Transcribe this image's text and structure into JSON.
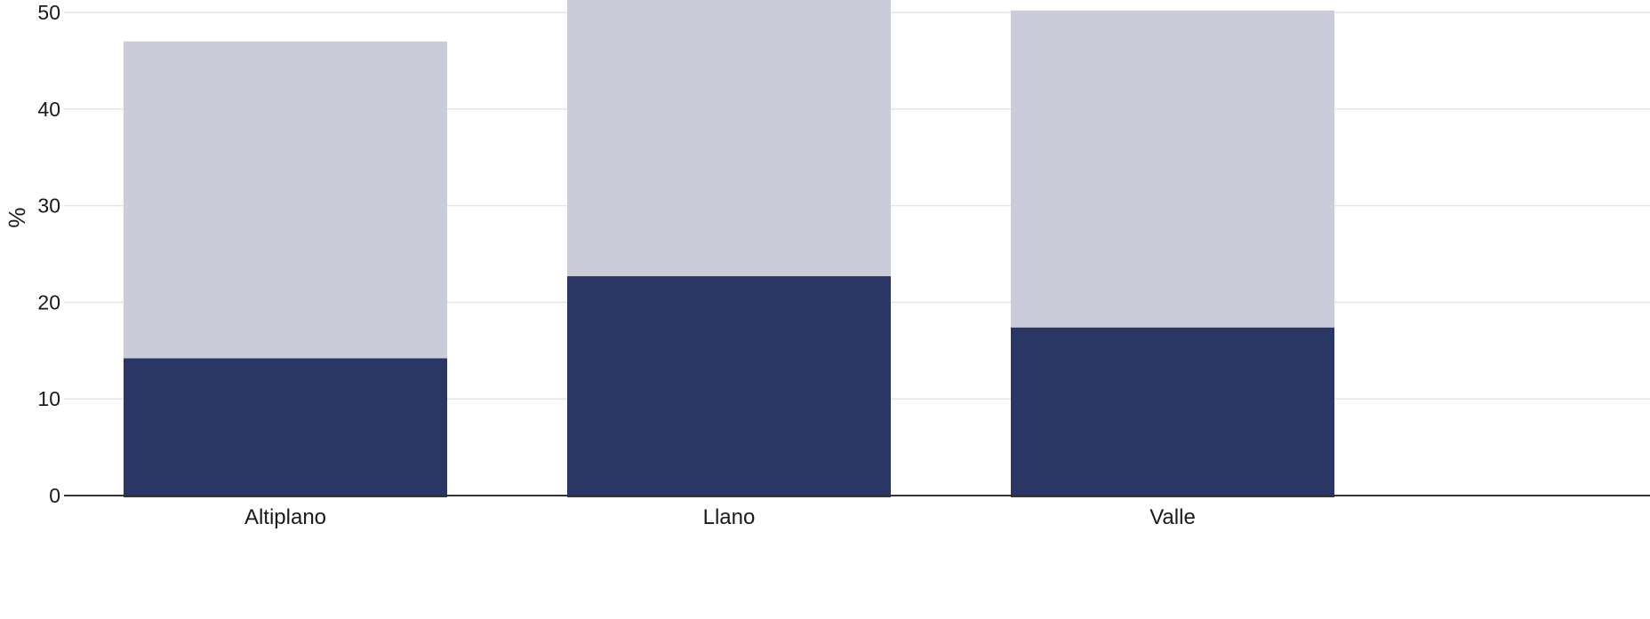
{
  "chart_data": {
    "type": "bar",
    "stacked": true,
    "categories": [
      "Altiplano",
      "Llano",
      "Valle"
    ],
    "series": [
      {
        "values": [
          14.2,
          22.7,
          17.4
        ],
        "color": "#2a3663"
      },
      {
        "values": [
          32.8,
          29.8,
          32.8
        ],
        "color": "#cacdd9"
      }
    ],
    "title": "",
    "xlabel": "",
    "ylabel": "%",
    "ylim": [
      0,
      50
    ],
    "yticks": [
      0,
      10,
      20,
      30,
      40,
      50
    ],
    "grid": true,
    "legend": "none",
    "colors": {
      "grid": "#e6e6e6",
      "axis": "#333333"
    }
  }
}
